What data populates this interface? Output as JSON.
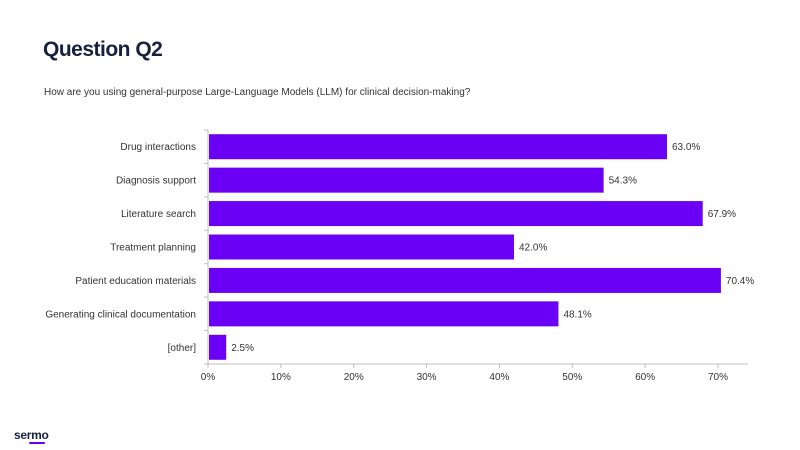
{
  "slide": {
    "title": "Question Q2",
    "subtitle": "How are you using general-purpose Large-Language Models (LLM) for clinical decision-making?"
  },
  "brand": {
    "name": "sermo",
    "accent_color": "#6a00f4"
  },
  "chart_data": {
    "type": "bar",
    "orientation": "horizontal",
    "categories": [
      "Drug interactions",
      "Diagnosis support",
      "Literature search",
      "Treatment planning",
      "Patient education materials",
      "Generating clinical documentation",
      "[other]"
    ],
    "values": [
      63.0,
      54.3,
      67.9,
      42.0,
      70.4,
      48.1,
      2.5
    ],
    "value_labels": [
      "63.0%",
      "54.3%",
      "67.9%",
      "42.0%",
      "70.4%",
      "48.1%",
      "2.5%"
    ],
    "xlim": [
      0,
      70
    ],
    "xticks": [
      0,
      10,
      20,
      30,
      40,
      50,
      60,
      70
    ],
    "xtick_labels": [
      "0%",
      "10%",
      "20%",
      "30%",
      "40%",
      "50%",
      "60%",
      "70%"
    ],
    "bar_color": "#6a00f4",
    "grid": false,
    "legend": "none"
  }
}
